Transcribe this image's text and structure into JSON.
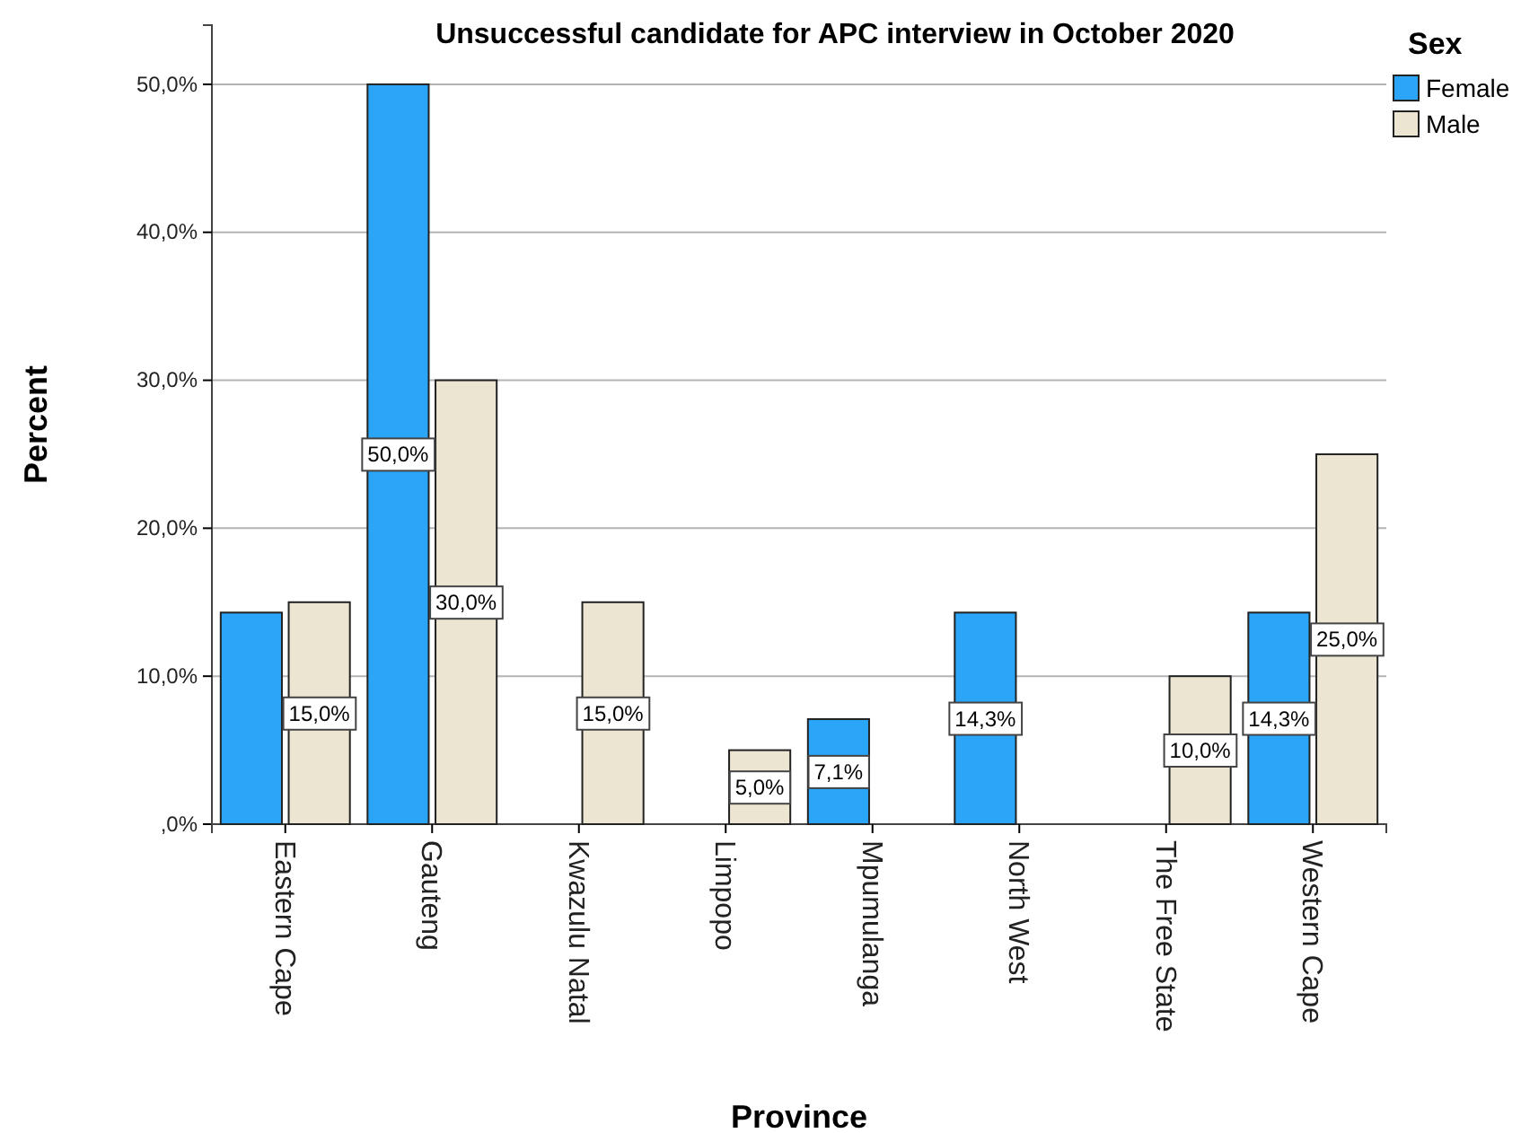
{
  "chart_data": {
    "type": "bar",
    "title": "Unsuccessful candidate for APC interview in October 2020",
    "xlabel": "Province",
    "ylabel": "Percent",
    "legend_title": "Sex",
    "categories": [
      "Eastern Cape",
      "Gauteng",
      "Kwazulu Natal",
      "Limpopo",
      "Mpumulanga",
      "North West",
      "The Free State",
      "Western Cape"
    ],
    "series": [
      {
        "name": "Female",
        "color": "#2ba5f7",
        "values": [
          14.3,
          50.0,
          0,
          0,
          7.1,
          14.3,
          0,
          14.3
        ],
        "value_labels": [
          null,
          "50,0%",
          null,
          null,
          "7,1%",
          "14,3%",
          null,
          "14,3%"
        ]
      },
      {
        "name": "Male",
        "color": "#ebe5d2",
        "values": [
          15.0,
          30.0,
          15.0,
          5.0,
          0,
          0,
          10.0,
          25.0
        ],
        "value_labels": [
          "15,0%",
          "30,0%",
          "15,0%",
          "5,0%",
          null,
          null,
          "10,0%",
          "25,0%"
        ]
      }
    ],
    "ylim": [
      0,
      54
    ],
    "yticks": [
      {
        "value": 0,
        "label": ",0%"
      },
      {
        "value": 10,
        "label": "10,0%"
      },
      {
        "value": 20,
        "label": "20,0%"
      },
      {
        "value": 30,
        "label": "30,0%"
      },
      {
        "value": 40,
        "label": "40,0%"
      },
      {
        "value": 50,
        "label": "50,0%"
      }
    ],
    "grid": "y",
    "legend": "top right"
  }
}
